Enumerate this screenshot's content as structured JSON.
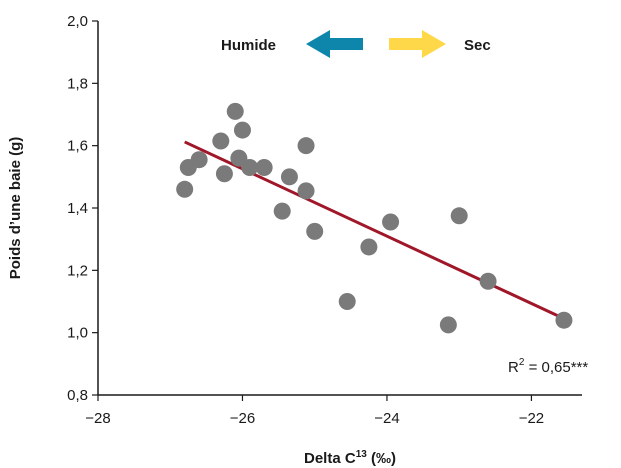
{
  "chart_data": {
    "type": "scatter",
    "xlabel": "Delta C",
    "xlabel_superscript": "13",
    "xlabel_unit": " (‰)",
    "ylabel": "Poids d’une baie (g)",
    "xlim": [
      -28,
      -21.3
    ],
    "ylim": [
      0.8,
      2.0
    ],
    "x_ticks": [
      -28,
      -26,
      -24,
      -22
    ],
    "x_tick_labels": [
      "−28",
      "−26",
      "−24",
      "−22"
    ],
    "y_ticks": [
      0.8,
      1.0,
      1.2,
      1.4,
      1.6,
      1.8,
      2.0
    ],
    "y_tick_labels": [
      "0,8",
      "1,0",
      "1,2",
      "1,4",
      "1,6",
      "1,8",
      "2,0"
    ],
    "points": [
      {
        "x": -26.8,
        "y": 1.46
      },
      {
        "x": -26.75,
        "y": 1.53
      },
      {
        "x": -26.6,
        "y": 1.555
      },
      {
        "x": -26.3,
        "y": 1.615
      },
      {
        "x": -26.25,
        "y": 1.51
      },
      {
        "x": -26.1,
        "y": 1.71
      },
      {
        "x": -26.05,
        "y": 1.56
      },
      {
        "x": -26.0,
        "y": 1.65
      },
      {
        "x": -25.9,
        "y": 1.53
      },
      {
        "x": -25.7,
        "y": 1.53
      },
      {
        "x": -25.45,
        "y": 1.39
      },
      {
        "x": -25.35,
        "y": 1.5
      },
      {
        "x": -25.12,
        "y": 1.6
      },
      {
        "x": -25.12,
        "y": 1.455
      },
      {
        "x": -25.0,
        "y": 1.325
      },
      {
        "x": -24.55,
        "y": 1.1
      },
      {
        "x": -24.25,
        "y": 1.275
      },
      {
        "x": -23.95,
        "y": 1.355
      },
      {
        "x": -23.15,
        "y": 1.025
      },
      {
        "x": -23.0,
        "y": 1.375
      },
      {
        "x": -22.6,
        "y": 1.165
      },
      {
        "x": -21.55,
        "y": 1.04
      }
    ],
    "regression": {
      "x": [
        -26.8,
        -21.55
      ],
      "y": [
        1.612,
        1.045
      ]
    },
    "r2_label": "R",
    "r2_superscript": "2",
    "r2_value": " = 0,65***",
    "annotations": {
      "humide": "Humide",
      "sec": "Sec"
    },
    "colors": {
      "points": "#7a7a7a",
      "regression": "#a01729",
      "arrow_left": "#0e86ac",
      "arrow_right": "#ffd84a",
      "axis": "#1a1a1a"
    }
  }
}
